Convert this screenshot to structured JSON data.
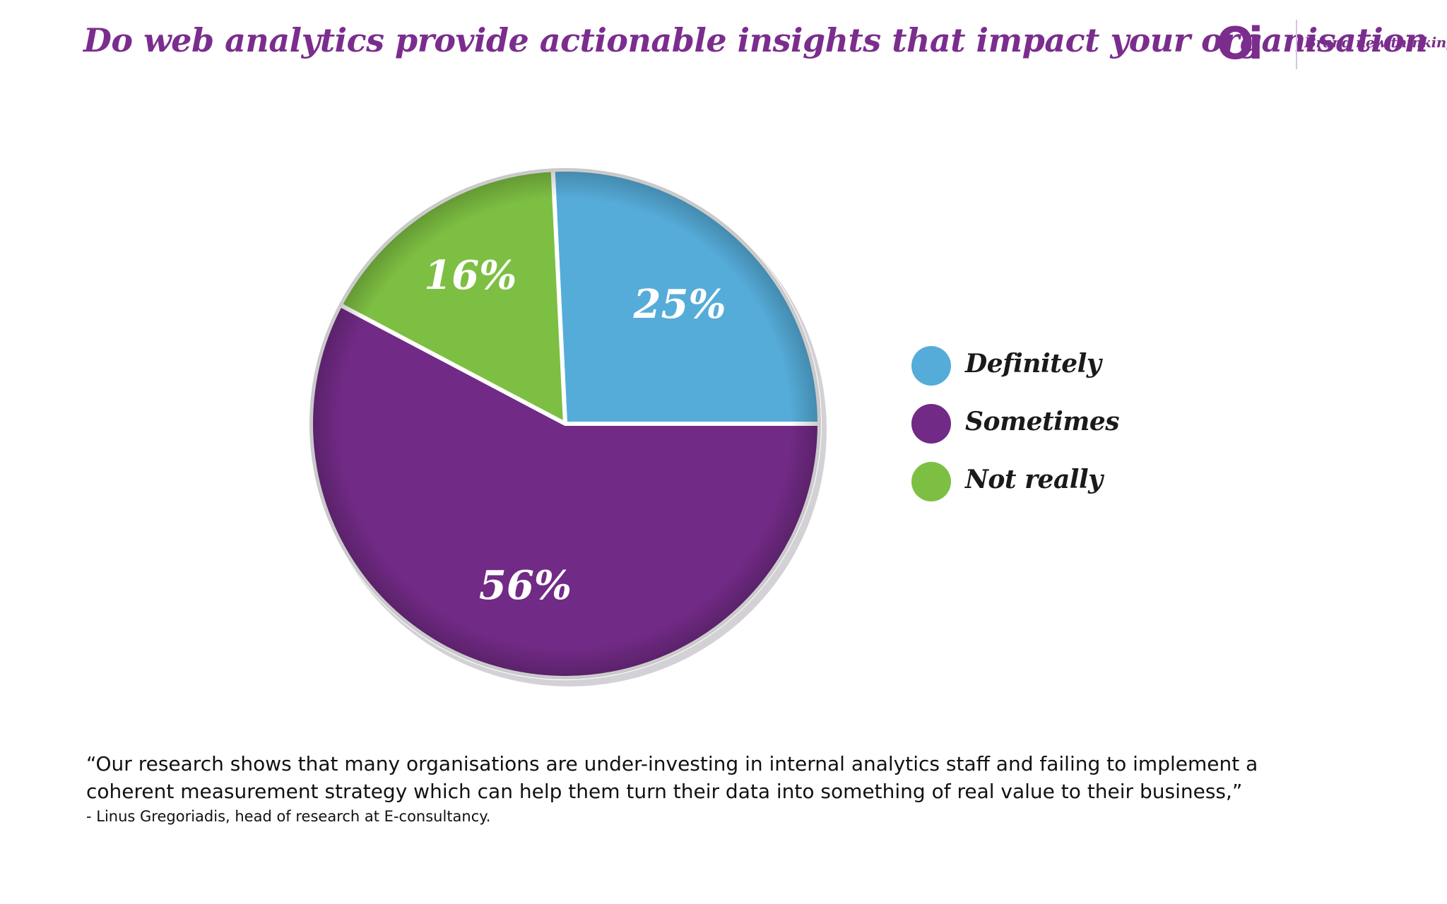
{
  "header": {
    "title": "Do web analytics provide actionable insights that impact your organisation"
  },
  "logo": {
    "mark": "Oi",
    "tagline": "Brand new thinking"
  },
  "chart_data": {
    "type": "pie",
    "title": "Do web analytics provide actionable insights that impact your organisation",
    "slices": [
      {
        "label": "Definitely",
        "value": 25,
        "display": "25%",
        "color": "#55acd9"
      },
      {
        "label": "Sometimes",
        "value": 56,
        "display": "56%",
        "color": "#712a85"
      },
      {
        "label": "Not really",
        "value": 16,
        "display": "16%",
        "color": "#7dbf42"
      }
    ],
    "legend_position": "right"
  },
  "legend": {
    "items": [
      {
        "label": "Definitely"
      },
      {
        "label": "Sometimes"
      },
      {
        "label": "Not really"
      }
    ]
  },
  "footer": {
    "quote": "“Our research shows that many organisations are under-investing in internal analytics staff and failing to implement a coherent measurement strategy which can help them turn their data into something of real value to their business,”",
    "attribution": "-  Linus Gregoriadis, head of research at E-consultancy."
  }
}
